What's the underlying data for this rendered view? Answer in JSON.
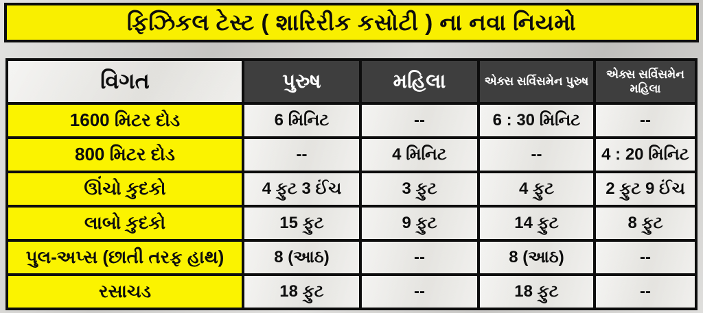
{
  "banner": {
    "title": "ફિઝિકલ ટેસ્ટ ( શારિરીક કસોટી ) ના નવા નિયમો"
  },
  "colors": {
    "banner_yellow": "#f9ef00",
    "label_yellow": "#fbf300",
    "header_dark": "#3e3e3e",
    "cell_light": "#e9e8e4",
    "border_black": "#0d0d0d",
    "background_grey": "#d2d1ce"
  },
  "table": {
    "headers": [
      "વિગત",
      "પુરુષ",
      "મહિલા",
      "એક્સ સર્વિસમેન પુરુષ",
      "એક્સ સર્વિસમેન મહિલા"
    ],
    "rows": [
      {
        "label": "1600 મિટર દોડ",
        "values": [
          "6 મિનિટ",
          "--",
          "6 : 30 મિનિટ",
          "--"
        ]
      },
      {
        "label": "800 મિટર દોડ",
        "values": [
          "--",
          "4 મિનિટ",
          "--",
          "4 : 20 મિનિટ"
        ]
      },
      {
        "label": "ઊંચો કુદકો",
        "values": [
          "4 ફુટ 3 ઈંચ",
          "3 ફુટ",
          "4 ફુટ",
          "2 ફુટ 9 ઈંચ"
        ]
      },
      {
        "label": "લાબો કુદકો",
        "values": [
          "15 ફુટ",
          "9 ફુટ",
          "14 ફુટ",
          "8 ફુટ"
        ]
      },
      {
        "label": "પુલ-અપ્સ (છાતી તરફ હાથ)",
        "values": [
          "8 (આઠ)",
          "--",
          "8 (આઠ)",
          "--"
        ]
      },
      {
        "label": "રસાચડ",
        "values": [
          "18 ફુટ",
          "--",
          "18 ફુટ",
          "--"
        ]
      }
    ]
  }
}
